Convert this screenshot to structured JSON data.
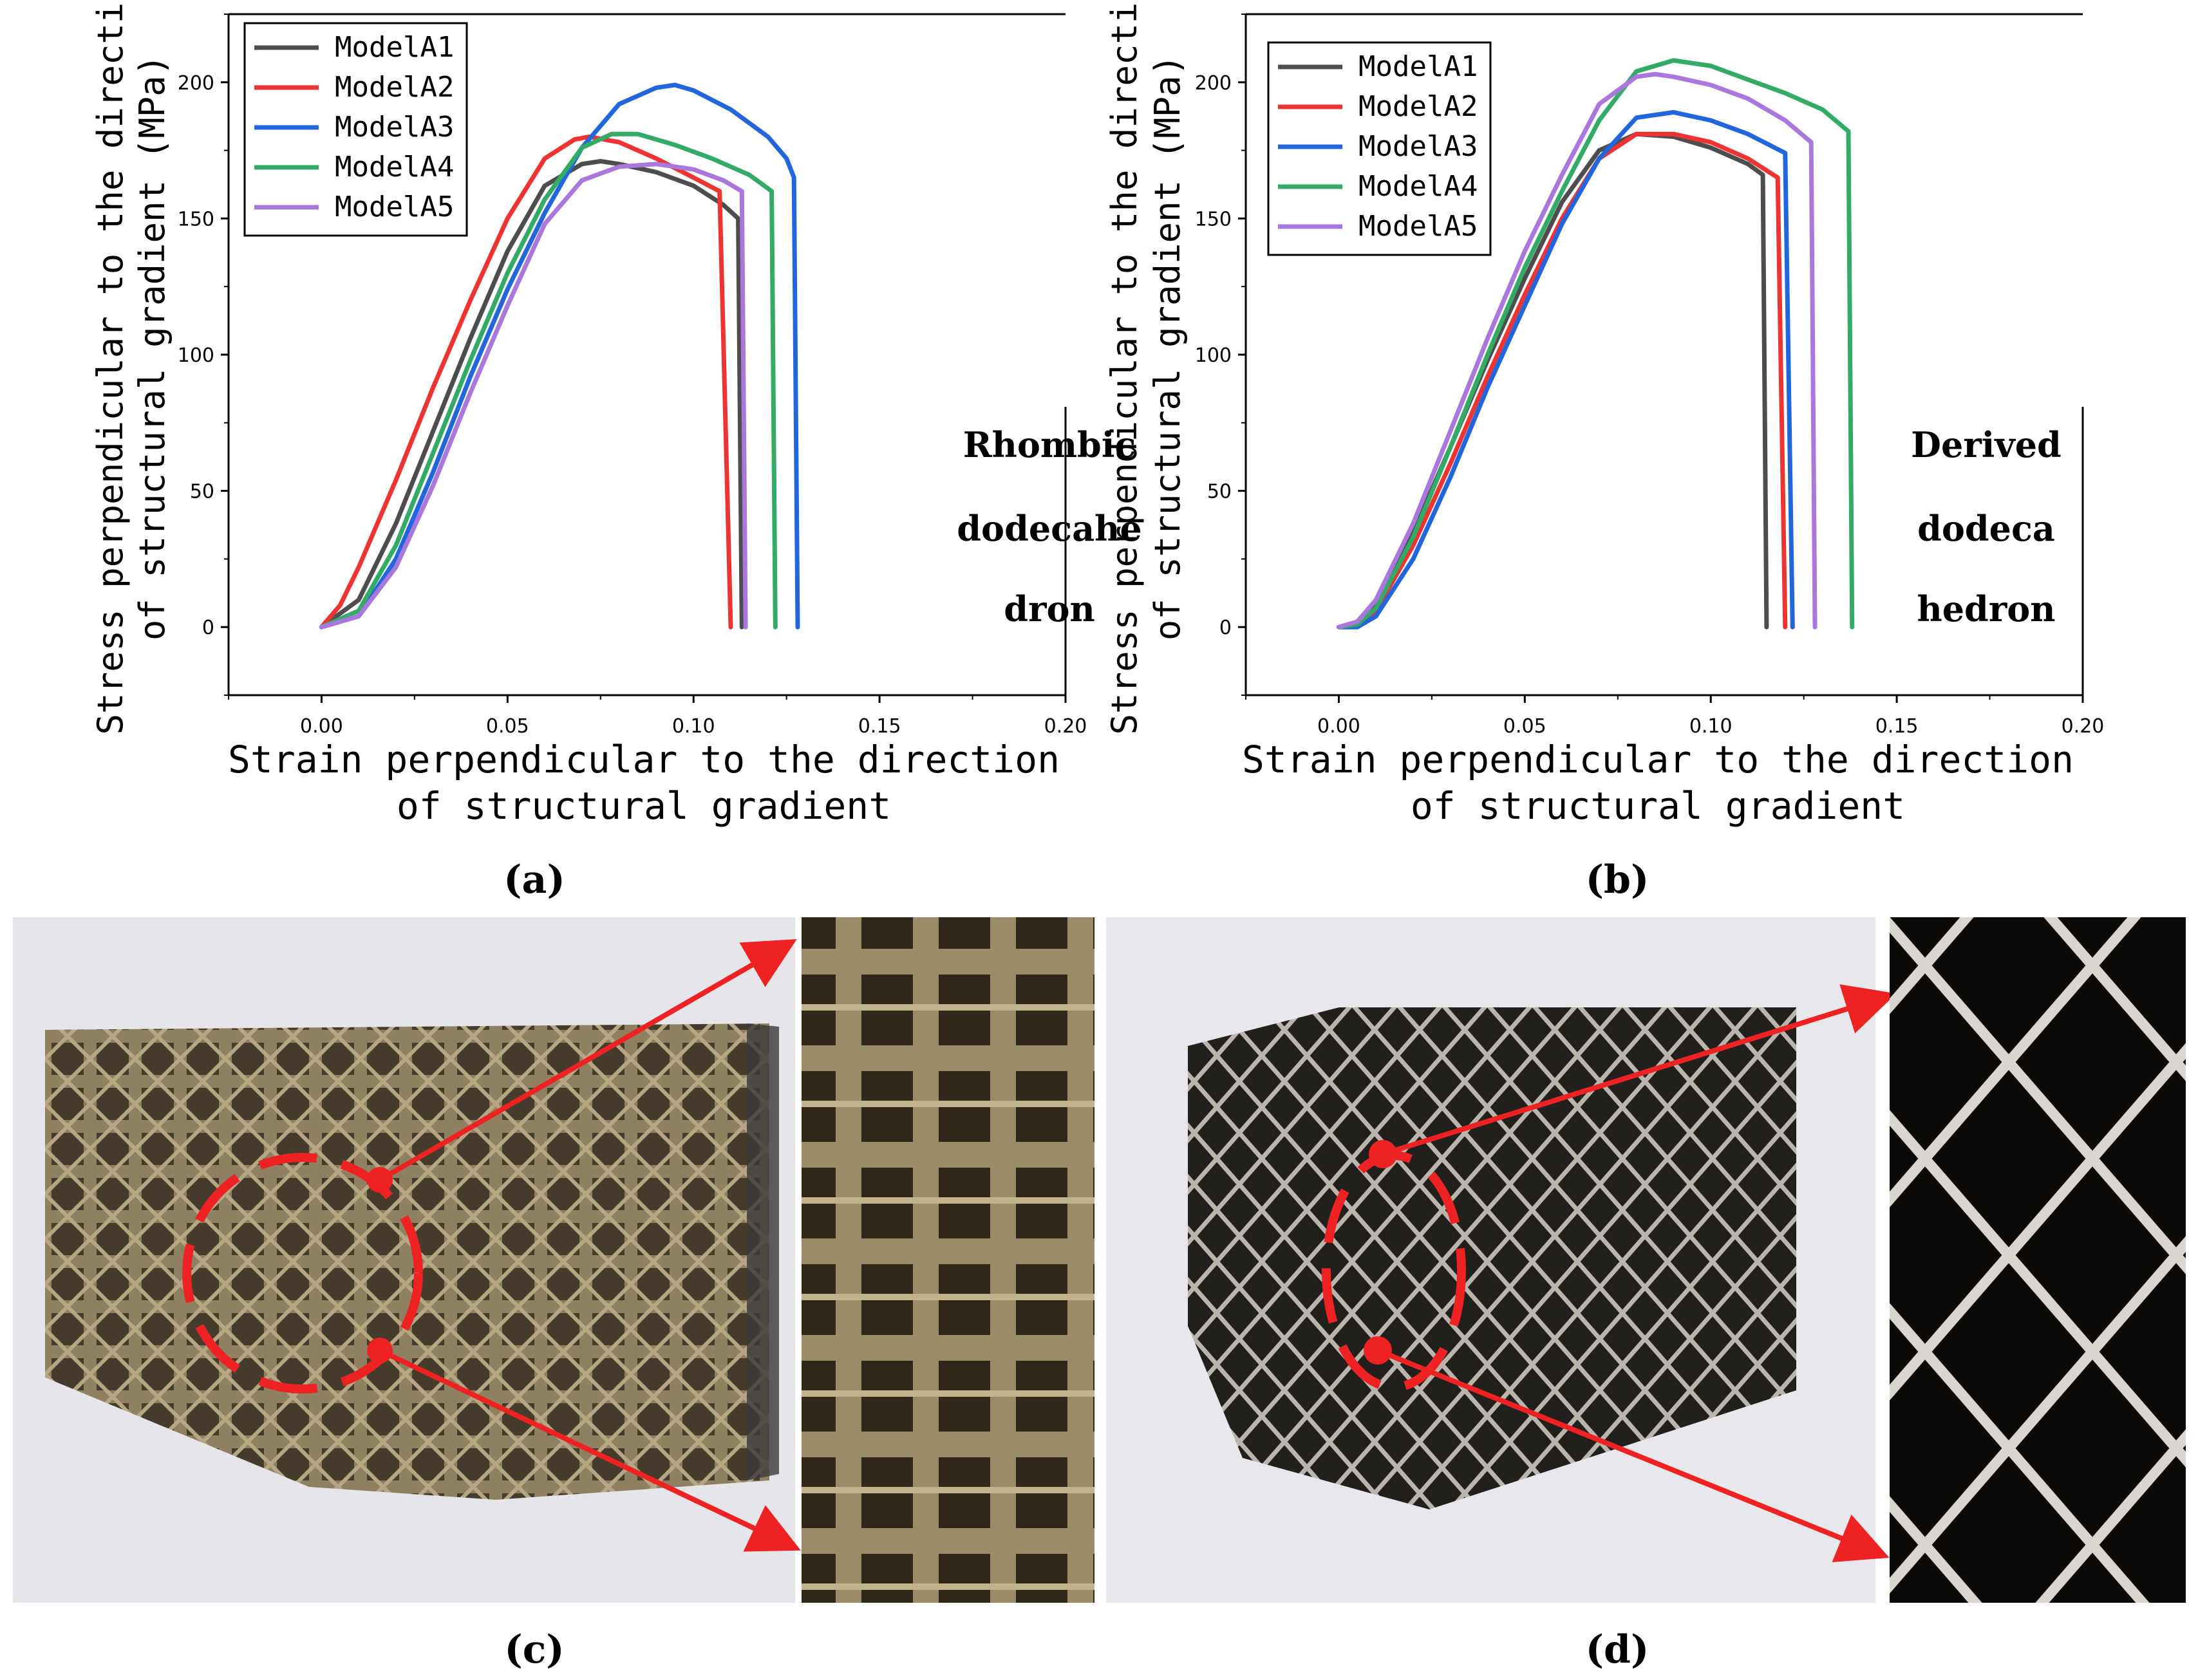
{
  "chart_data": [
    {
      "panel": "a",
      "type": "line",
      "xlabel_lines": [
        "Strain perpendicular to the direction",
        "of structural gradient"
      ],
      "ylabel_lines": [
        "Stress perpendicular to the direction",
        "of structural gradient (MPa)"
      ],
      "xlim": [
        -0.025,
        0.2
      ],
      "ylim": [
        -25,
        225
      ],
      "xticks": [
        0.0,
        0.05,
        0.1,
        0.15,
        0.2
      ],
      "xtick_labels": [
        "0.00",
        "0.05",
        "0.10",
        "0.15",
        "0.20"
      ],
      "yticks": [
        0,
        50,
        100,
        150,
        200
      ],
      "ytick_labels": [
        "0",
        "50",
        "100",
        "150",
        "200"
      ],
      "legend_position": "top-left",
      "annotation_lines": [
        "Rhombic",
        "dodecahe",
        "dron"
      ],
      "series": [
        {
          "name": "ModelA1",
          "color": "#4d4d4d",
          "x": [
            0.0,
            0.01,
            0.02,
            0.03,
            0.04,
            0.05,
            0.06,
            0.07,
            0.075,
            0.08,
            0.09,
            0.1,
            0.108,
            0.112,
            0.113
          ],
          "y": [
            0,
            10,
            38,
            72,
            106,
            138,
            162,
            170,
            171,
            170,
            167,
            162,
            155,
            150,
            0
          ]
        },
        {
          "name": "ModelA2",
          "color": "#ee3333",
          "x": [
            0.0,
            0.005,
            0.01,
            0.02,
            0.03,
            0.04,
            0.05,
            0.06,
            0.068,
            0.072,
            0.08,
            0.09,
            0.1,
            0.107,
            0.11
          ],
          "y": [
            0,
            8,
            22,
            54,
            88,
            120,
            150,
            172,
            179,
            180,
            178,
            172,
            165,
            160,
            0
          ]
        },
        {
          "name": "ModelA3",
          "color": "#2266dd",
          "x": [
            0.0,
            0.01,
            0.02,
            0.03,
            0.04,
            0.05,
            0.06,
            0.07,
            0.08,
            0.09,
            0.095,
            0.1,
            0.11,
            0.12,
            0.125,
            0.127,
            0.128
          ],
          "y": [
            0,
            4,
            25,
            57,
            92,
            124,
            152,
            176,
            192,
            198,
            199,
            197,
            190,
            180,
            172,
            165,
            0
          ]
        },
        {
          "name": "ModelA4",
          "color": "#33aa66",
          "x": [
            0.0,
            0.01,
            0.02,
            0.03,
            0.04,
            0.05,
            0.06,
            0.07,
            0.078,
            0.085,
            0.095,
            0.105,
            0.115,
            0.121,
            0.122
          ],
          "y": [
            0,
            6,
            30,
            64,
            98,
            130,
            157,
            176,
            181,
            181,
            177,
            172,
            166,
            160,
            0
          ]
        },
        {
          "name": "ModelA5",
          "color": "#aa77dd",
          "x": [
            0.0,
            0.01,
            0.02,
            0.03,
            0.04,
            0.05,
            0.06,
            0.07,
            0.08,
            0.09,
            0.1,
            0.108,
            0.113,
            0.114
          ],
          "y": [
            0,
            4,
            22,
            52,
            86,
            118,
            148,
            164,
            169,
            170,
            168,
            164,
            160,
            0
          ]
        }
      ]
    },
    {
      "panel": "b",
      "type": "line",
      "xlabel_lines": [
        "Strain perpendicular to the direction",
        "of structural gradient"
      ],
      "ylabel_lines": [
        "Stress perpendicular to the direction",
        "of structural gradient (MPa)"
      ],
      "xlim": [
        -0.025,
        0.2
      ],
      "ylim": [
        -25,
        225
      ],
      "xticks": [
        0.0,
        0.05,
        0.1,
        0.15,
        0.2
      ],
      "xtick_labels": [
        "0.00",
        "0.05",
        "0.10",
        "0.15",
        "0.20"
      ],
      "yticks": [
        0,
        50,
        100,
        150,
        200
      ],
      "ytick_labels": [
        "0",
        "50",
        "100",
        "150",
        "200"
      ],
      "legend_position": "top-left",
      "annotation_lines": [
        "Derived",
        "dodeca",
        "hedron"
      ],
      "series": [
        {
          "name": "ModelA1",
          "color": "#4d4d4d",
          "x": [
            0.0,
            0.005,
            0.01,
            0.02,
            0.03,
            0.04,
            0.05,
            0.06,
            0.07,
            0.08,
            0.09,
            0.1,
            0.11,
            0.114,
            0.115
          ],
          "y": [
            0,
            1,
            8,
            35,
            66,
            98,
            128,
            156,
            175,
            181,
            180,
            176,
            170,
            166,
            0
          ]
        },
        {
          "name": "ModelA2",
          "color": "#ee3333",
          "x": [
            0.0,
            0.005,
            0.01,
            0.02,
            0.03,
            0.04,
            0.05,
            0.06,
            0.07,
            0.08,
            0.09,
            0.1,
            0.11,
            0.118,
            0.12
          ],
          "y": [
            0,
            1,
            6,
            30,
            60,
            92,
            122,
            150,
            172,
            181,
            181,
            178,
            172,
            165,
            0
          ]
        },
        {
          "name": "ModelA3",
          "color": "#2266dd",
          "x": [
            0.0,
            0.005,
            0.01,
            0.02,
            0.03,
            0.04,
            0.05,
            0.06,
            0.07,
            0.08,
            0.09,
            0.1,
            0.11,
            0.12,
            0.122
          ],
          "y": [
            0,
            0,
            4,
            25,
            55,
            88,
            118,
            148,
            172,
            187,
            189,
            186,
            181,
            174,
            0
          ]
        },
        {
          "name": "ModelA4",
          "color": "#33aa66",
          "x": [
            0.0,
            0.005,
            0.01,
            0.02,
            0.03,
            0.04,
            0.05,
            0.06,
            0.07,
            0.08,
            0.09,
            0.1,
            0.11,
            0.12,
            0.13,
            0.137,
            0.138
          ],
          "y": [
            0,
            1,
            7,
            33,
            66,
            100,
            132,
            160,
            186,
            204,
            208,
            206,
            201,
            196,
            190,
            182,
            0
          ]
        },
        {
          "name": "ModelA5",
          "color": "#aa77dd",
          "x": [
            0.0,
            0.005,
            0.01,
            0.02,
            0.03,
            0.04,
            0.05,
            0.06,
            0.07,
            0.08,
            0.085,
            0.09,
            0.1,
            0.11,
            0.12,
            0.127,
            0.128
          ],
          "y": [
            0,
            2,
            10,
            38,
            72,
            106,
            138,
            166,
            192,
            202,
            203,
            202,
            199,
            194,
            186,
            178,
            0
          ]
        }
      ]
    }
  ],
  "captions": {
    "a": "(a)",
    "b": "(b)",
    "c": "(c)",
    "d": "(d)"
  }
}
